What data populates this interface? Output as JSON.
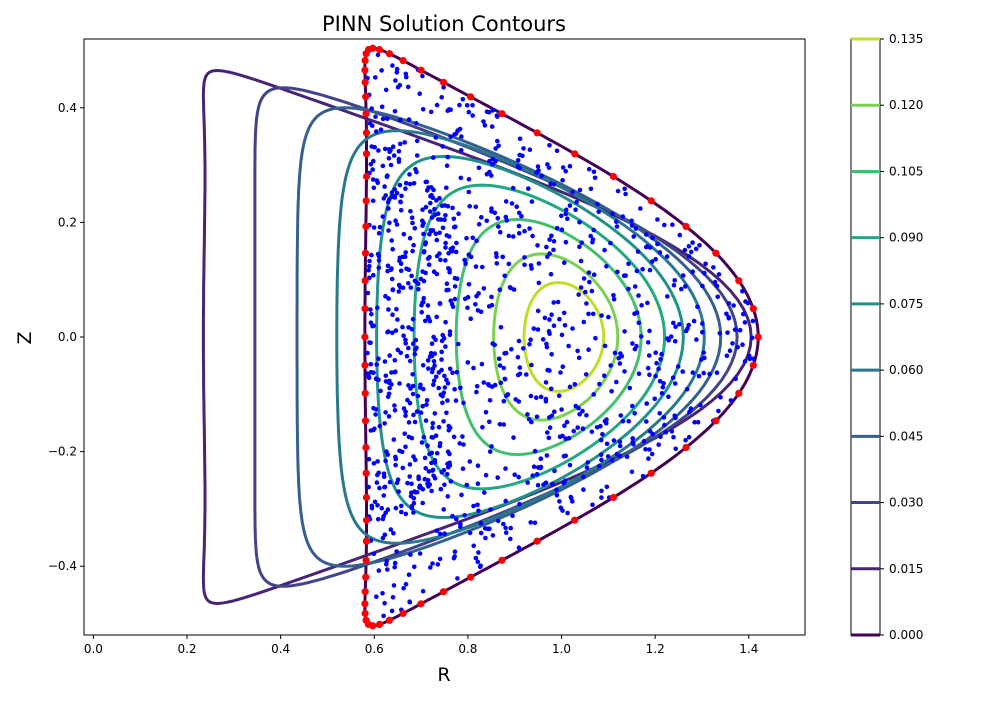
{
  "chart_data": {
    "type": "contour",
    "title": "PINN Solution Contours",
    "xlabel": "R",
    "ylabel": "Z",
    "xlim": [
      -0.02,
      1.52
    ],
    "ylim": [
      -0.52,
      0.52
    ],
    "x_ticks": [
      0.0,
      0.2,
      0.4,
      0.6,
      0.8,
      1.0,
      1.2,
      1.4
    ],
    "x_tick_labels": [
      "0.0",
      "0.2",
      "0.4",
      "0.6",
      "0.8",
      "1.0",
      "1.2",
      "1.4"
    ],
    "y_ticks": [
      -0.4,
      -0.2,
      0.0,
      0.2,
      0.4
    ],
    "y_tick_labels": [
      "−0.4",
      "−0.2",
      "0.0",
      "0.2",
      "0.4"
    ],
    "colormap": "viridis",
    "colorbar": {
      "min": 0.0,
      "max": 0.135,
      "levels": [
        0.0,
        0.015,
        0.03,
        0.045,
        0.06,
        0.075,
        0.09,
        0.105,
        0.12,
        0.135
      ],
      "tick_labels": [
        "0.000",
        "0.015",
        "0.030",
        "0.045",
        "0.060",
        "0.075",
        "0.090",
        "0.105",
        "0.120",
        "0.135"
      ]
    },
    "boundary": {
      "center_r": 1.0,
      "minor_radius": 0.42,
      "elongation": 1.2,
      "triangularity": 0.96,
      "colour": "#440154"
    },
    "contours": [
      {
        "level": 0.015,
        "colour": "#482475",
        "left_r": 0.235,
        "right_r": 1.405,
        "z_max": 0.465
      },
      {
        "level": 0.03,
        "colour": "#414487",
        "left_r": 0.345,
        "right_r": 1.375,
        "z_max": 0.435
      },
      {
        "level": 0.045,
        "colour": "#355f8d",
        "left_r": 0.435,
        "right_r": 1.34,
        "z_max": 0.4
      },
      {
        "level": 0.06,
        "colour": "#2a788e",
        "left_r": 0.52,
        "right_r": 1.305,
        "z_max": 0.36
      },
      {
        "level": 0.075,
        "colour": "#21918c",
        "left_r": 0.605,
        "right_r": 1.26,
        "z_max": 0.315
      },
      {
        "level": 0.09,
        "colour": "#22a884",
        "left_r": 0.685,
        "right_r": 1.22,
        "z_max": 0.265
      },
      {
        "level": 0.105,
        "colour": "#44bf70",
        "left_r": 0.775,
        "right_r": 1.17,
        "z_max": 0.205
      },
      {
        "level": 0.12,
        "colour": "#7ad151",
        "left_r": 0.855,
        "right_r": 1.12,
        "z_max": 0.145
      },
      {
        "level": 0.135,
        "colour": "#bddf26",
        "left_r": 0.92,
        "right_r": 1.09,
        "z_max": 0.095
      }
    ],
    "points": {
      "interior_colour": "#0000ff",
      "boundary_colour": "#ff0000",
      "interior_count": 900,
      "boundary_count": 64
    }
  }
}
